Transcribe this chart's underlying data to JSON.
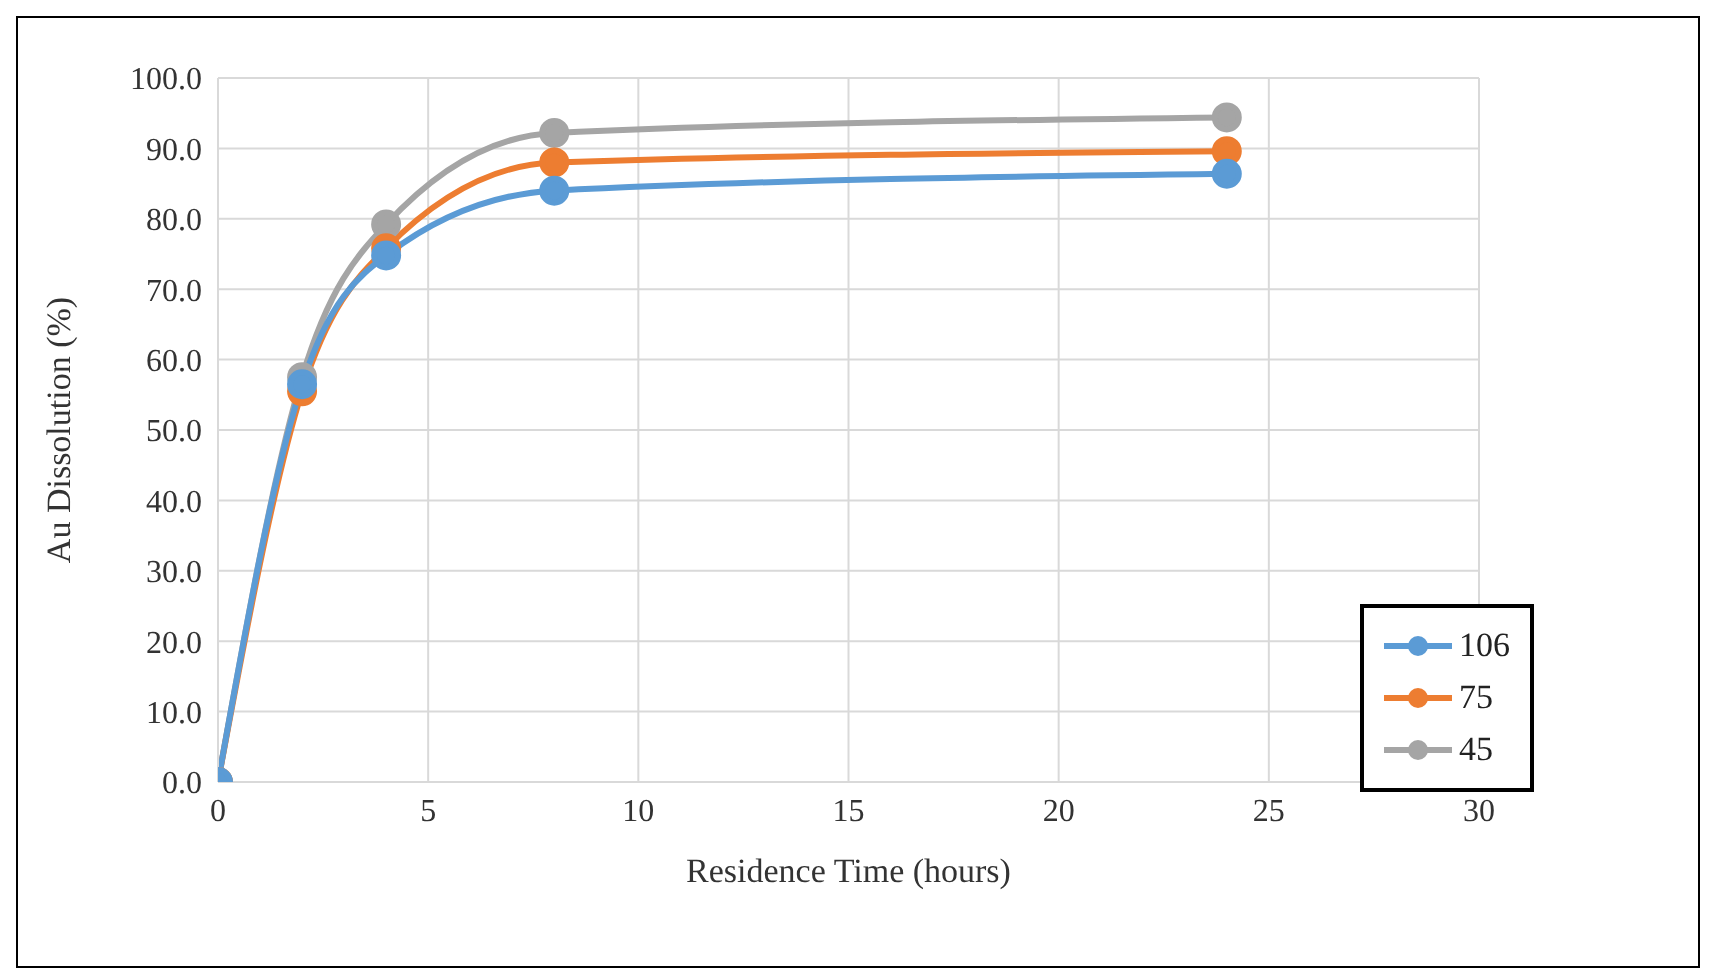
{
  "chart_data": {
    "type": "line",
    "xlabel": "Residence Time (hours)",
    "ylabel": "Au Dissolution (%)",
    "x": [
      0,
      2,
      4,
      8,
      24
    ],
    "series": [
      {
        "name": "106",
        "color": "#5b9bd5",
        "values": [
          0,
          56.5,
          74.8,
          84.0,
          86.4
        ]
      },
      {
        "name": "75",
        "color": "#ed7d31",
        "values": [
          0,
          55.5,
          75.8,
          88.0,
          89.6
        ]
      },
      {
        "name": "45",
        "color": "#a5a5a5",
        "values": [
          0,
          57.5,
          79.2,
          92.2,
          94.4
        ]
      }
    ],
    "xlim": [
      0,
      30
    ],
    "xticks": [
      0,
      5,
      10,
      15,
      20,
      25,
      30
    ],
    "ylim": [
      0,
      100
    ],
    "yticks": [
      {
        "value": 0,
        "label": "0.0"
      },
      {
        "value": 10,
        "label": "10.0"
      },
      {
        "value": 20,
        "label": "20.0"
      },
      {
        "value": 30,
        "label": "30.0"
      },
      {
        "value": 40,
        "label": "40.0"
      },
      {
        "value": 50,
        "label": "50.0"
      },
      {
        "value": 60,
        "label": "60.0"
      },
      {
        "value": 70,
        "label": "70.0"
      },
      {
        "value": 80,
        "label": "80.0"
      },
      {
        "value": 90,
        "label": "90.0"
      },
      {
        "value": 100,
        "label": "100.0"
      }
    ],
    "grid": true,
    "legend": "bottom right",
    "marker": "circle",
    "line_style": "solid"
  }
}
